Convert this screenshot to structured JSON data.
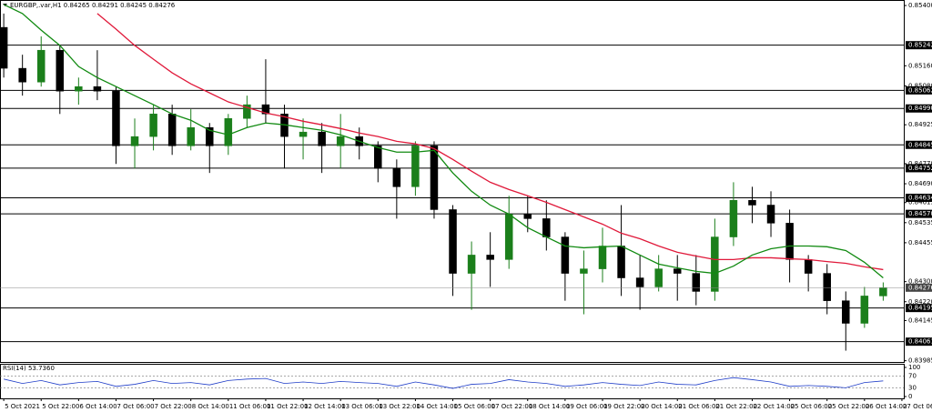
{
  "chart_data": {
    "type": "candlestick",
    "title": "EURGBP,.var,H1  0.84265 0.84291 0.84245 0.84276",
    "up_color": "#1b7f1b",
    "down_color": "#000000",
    "xlim": [
      -0.2,
      48.1
    ],
    "ylim": [
      0.8398,
      0.85422
    ],
    "xticks": [
      {
        "value": 0,
        "label": "5 Oct 2021"
      },
      {
        "value": 2,
        "label": "5 Oct 22:00"
      },
      {
        "value": 4,
        "label": "6 Oct 14:00"
      },
      {
        "value": 6,
        "label": "7 Oct 06:00"
      },
      {
        "value": 8,
        "label": "7 Oct 22:00"
      },
      {
        "value": 10,
        "label": "8 Oct 14:00"
      },
      {
        "value": 12,
        "label": "11 Oct 06:00"
      },
      {
        "value": 14,
        "label": "11 Oct 22:00"
      },
      {
        "value": 16,
        "label": "12 Oct 14:00"
      },
      {
        "value": 18,
        "label": "13 Oct 06:00"
      },
      {
        "value": 20,
        "label": "13 Oct 22:00"
      },
      {
        "value": 22,
        "label": "14 Oct 14:00"
      },
      {
        "value": 24,
        "label": "15 Oct 06:00"
      },
      {
        "value": 26,
        "label": "17 Oct 22:00"
      },
      {
        "value": 28,
        "label": "18 Oct 14:00"
      },
      {
        "value": 30,
        "label": "19 Oct 06:00"
      },
      {
        "value": 32,
        "label": "19 Oct 22:00"
      },
      {
        "value": 34,
        "label": "20 Oct 14:00"
      },
      {
        "value": 36,
        "label": "21 Oct 06:00"
      },
      {
        "value": 38,
        "label": "21 Oct 22:00"
      },
      {
        "value": 40,
        "label": "22 Oct 14:00"
      },
      {
        "value": 42,
        "label": "25 Oct 06:00"
      },
      {
        "value": 44,
        "label": "25 Oct 22:00"
      },
      {
        "value": 46,
        "label": "26 Oct 14:00"
      },
      {
        "value": 48,
        "label": "27 Oct 06:00"
      }
    ],
    "yticks": [
      {
        "value": 0.854,
        "label": "0.85400"
      },
      {
        "value": 0.8516,
        "label": "0.85160"
      },
      {
        "value": 0.8508,
        "label": "0.85080"
      },
      0.84925,
      {
        "value": 0.8477,
        "label": "0.84770"
      },
      {
        "value": 0.8469,
        "label": "0.84690"
      },
      0.84615,
      0.84535,
      0.84455,
      {
        "value": 0.843,
        "label": "0.84300"
      },
      {
        "value": 0.8422,
        "label": "0.84220"
      },
      0.84145,
      0.83985
    ],
    "levels": [
      0.85242,
      0.85062,
      {
        "value": 0.8499,
        "label": "0.84990"
      },
      0.84845,
      0.84752,
      0.84634,
      {
        "value": 0.8457,
        "label": "0.84570"
      },
      0.84195,
      0.84061
    ],
    "current_price": 0.84276,
    "open": [
      0.85313,
      0.8515,
      0.85095,
      0.85222,
      0.85059,
      0.85077,
      0.85059,
      0.84841,
      0.84878,
      0.84968,
      0.84841,
      0.84914,
      0.84841,
      0.8495,
      0.85005,
      0.84968,
      0.84878,
      0.84896,
      0.84841,
      0.84878,
      0.84841,
      0.84751,
      0.84678,
      0.84841,
      0.84587,
      0.84333,
      0.84406,
      0.84388,
      0.84569,
      0.84551,
      0.84478,
      0.84333,
      0.84351,
      0.84442,
      0.84315,
      0.84279,
      0.84351,
      0.84333,
      0.84261,
      0.84478,
      0.84624,
      0.84605,
      0.84533,
      0.84388,
      0.84333,
      0.84224,
      0.84134,
      0.84243
    ],
    "high": [
      0.85368,
      0.85204,
      0.85277,
      0.85241,
      0.85113,
      0.85222,
      0.85077,
      0.8495,
      0.85005,
      0.85005,
      0.84987,
      0.84932,
      0.84968,
      0.85041,
      0.85186,
      0.85005,
      0.8495,
      0.84932,
      0.84968,
      0.84914,
      0.84859,
      0.84787,
      0.84859,
      0.84859,
      0.84605,
      0.8446,
      0.84497,
      0.84642,
      0.84642,
      0.84624,
      0.84497,
      0.84424,
      0.84515,
      0.84605,
      0.84406,
      0.84406,
      0.84406,
      0.84406,
      0.84551,
      0.84696,
      0.84678,
      0.8466,
      0.84587,
      0.84406,
      0.8437,
      0.84261,
      0.84279,
      0.84297
    ],
    "low": [
      0.85113,
      0.85041,
      0.85077,
      0.84968,
      0.85005,
      0.85023,
      0.84769,
      0.84751,
      0.84823,
      0.84805,
      0.84823,
      0.84733,
      0.84805,
      0.84914,
      0.84932,
      0.84751,
      0.84787,
      0.84733,
      0.84751,
      0.84787,
      0.84696,
      0.84551,
      0.84642,
      0.84551,
      0.84243,
      0.84188,
      0.84279,
      0.84351,
      0.84497,
      0.84424,
      0.84224,
      0.8417,
      0.84297,
      0.84243,
      0.84188,
      0.84261,
      0.84224,
      0.84206,
      0.84224,
      0.84442,
      0.84533,
      0.84478,
      0.84297,
      0.84261,
      0.8417,
      0.84025,
      0.84116,
      0.84224
    ],
    "close": [
      0.8515,
      0.85095,
      0.85222,
      0.85059,
      0.85077,
      0.85059,
      0.84841,
      0.84878,
      0.84968,
      0.84841,
      0.84914,
      0.84841,
      0.8495,
      0.85005,
      0.84968,
      0.84878,
      0.84896,
      0.84841,
      0.84878,
      0.84841,
      0.84751,
      0.84678,
      0.84841,
      0.84587,
      0.84333,
      0.84406,
      0.84388,
      0.84569,
      0.84551,
      0.84478,
      0.84333,
      0.84351,
      0.84442,
      0.84315,
      0.84279,
      0.84351,
      0.84333,
      0.84261,
      0.84478,
      0.84624,
      0.84605,
      0.84533,
      0.84388,
      0.84333,
      0.84224,
      0.84134,
      0.84243,
      0.84276
    ],
    "ma_lines": [
      {
        "color": "#e0193a",
        "values": [
          null,
          null,
          null,
          null,
          null,
          0.85368,
          0.85306,
          0.85241,
          0.85186,
          0.85132,
          0.85088,
          0.85052,
          0.85016,
          0.84994,
          0.84972,
          0.84957,
          0.84939,
          0.84925,
          0.8491,
          0.84892,
          0.84878,
          0.84859,
          0.84849,
          0.8483,
          0.84787,
          0.8474,
          0.84696,
          0.84667,
          0.84642,
          0.84616,
          0.84587,
          0.84558,
          0.84529,
          0.84493,
          0.84471,
          0.84442,
          0.84417,
          0.84402,
          0.84388,
          0.84388,
          0.84395,
          0.84395,
          0.84391,
          0.84388,
          0.8438,
          0.84373,
          0.84359,
          0.84348
        ]
      },
      {
        "color": "#118a11",
        "values": [
          0.85404,
          0.85368,
          0.85302,
          0.85241,
          0.85157,
          0.85113,
          0.85077,
          0.85041,
          0.85005,
          0.84968,
          0.84943,
          0.84903,
          0.84885,
          0.84914,
          0.84932,
          0.84925,
          0.84914,
          0.84903,
          0.84885,
          0.84859,
          0.84834,
          0.84816,
          0.84816,
          0.84823,
          0.84733,
          0.8466,
          0.84605,
          0.84569,
          0.84515,
          0.84478,
          0.84442,
          0.84435,
          0.84439,
          0.84442,
          0.84406,
          0.8437,
          0.84355,
          0.84341,
          0.84333,
          0.84362,
          0.84406,
          0.84431,
          0.84442,
          0.84442,
          0.84439,
          0.84424,
          0.84377,
          0.84315
        ]
      }
    ],
    "rsi": {
      "title": "RSI(14) 53.7360",
      "color": "#1e3cc8",
      "ylim": [
        0,
        100
      ],
      "yticks": [
        100,
        70,
        30,
        0
      ],
      "values": [
        60,
        45,
        55,
        40,
        48,
        52,
        35,
        42,
        55,
        45,
        48,
        40,
        55,
        60,
        62,
        45,
        50,
        45,
        52,
        48,
        45,
        35,
        50,
        40,
        28,
        42,
        45,
        58,
        50,
        45,
        35,
        40,
        48,
        42,
        38,
        50,
        42,
        40,
        55,
        65,
        58,
        50,
        35,
        38,
        35,
        30,
        48,
        53.736
      ]
    }
  }
}
